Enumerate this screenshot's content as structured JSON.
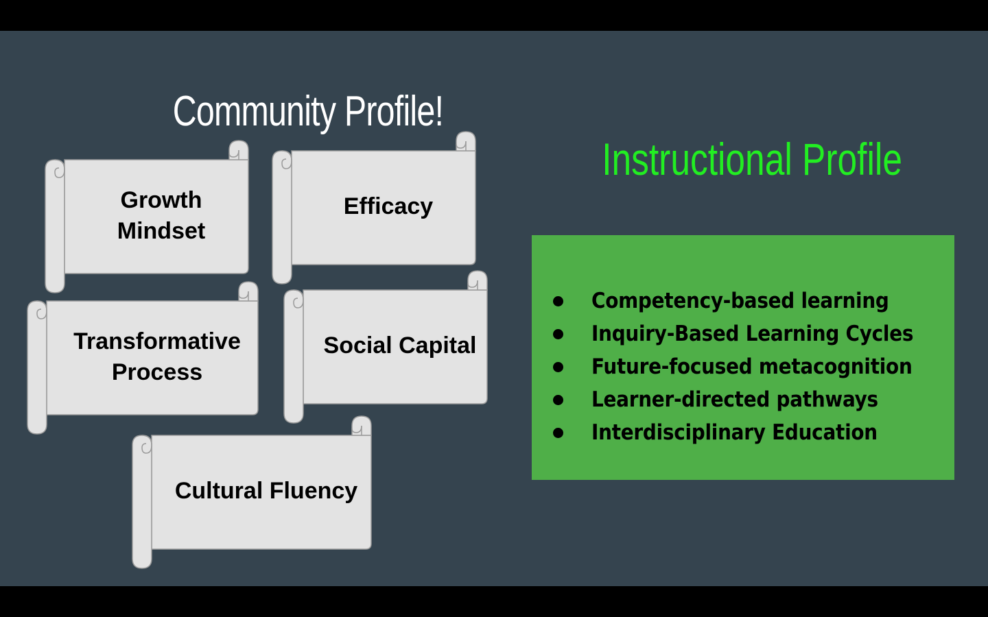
{
  "community": {
    "title": "Community Profile!",
    "scrolls": [
      {
        "label_lines": [
          "Growth",
          "Mindset"
        ]
      },
      {
        "label_lines": [
          "Efficacy"
        ]
      },
      {
        "label_lines": [
          "Transformative",
          "Process"
        ]
      },
      {
        "label_lines": [
          "Social Capital"
        ]
      },
      {
        "label_lines": [
          "Cultural Fluency"
        ]
      }
    ]
  },
  "instructional": {
    "title": "Instructional Profile",
    "items": [
      "Competency-based learning",
      "Inquiry-Based Learning Cycles",
      "Future-focused metacognition",
      "Learner-directed pathways",
      "Interdisciplinary Education"
    ]
  },
  "colors": {
    "slide_background": "#35444f",
    "frame": "#000000",
    "title_white": "#ffffff",
    "title_green": "#22ee22",
    "box_green": "#4faf48",
    "scroll_fill": "#e3e3e3",
    "scroll_outline": "#9a9a9a"
  }
}
